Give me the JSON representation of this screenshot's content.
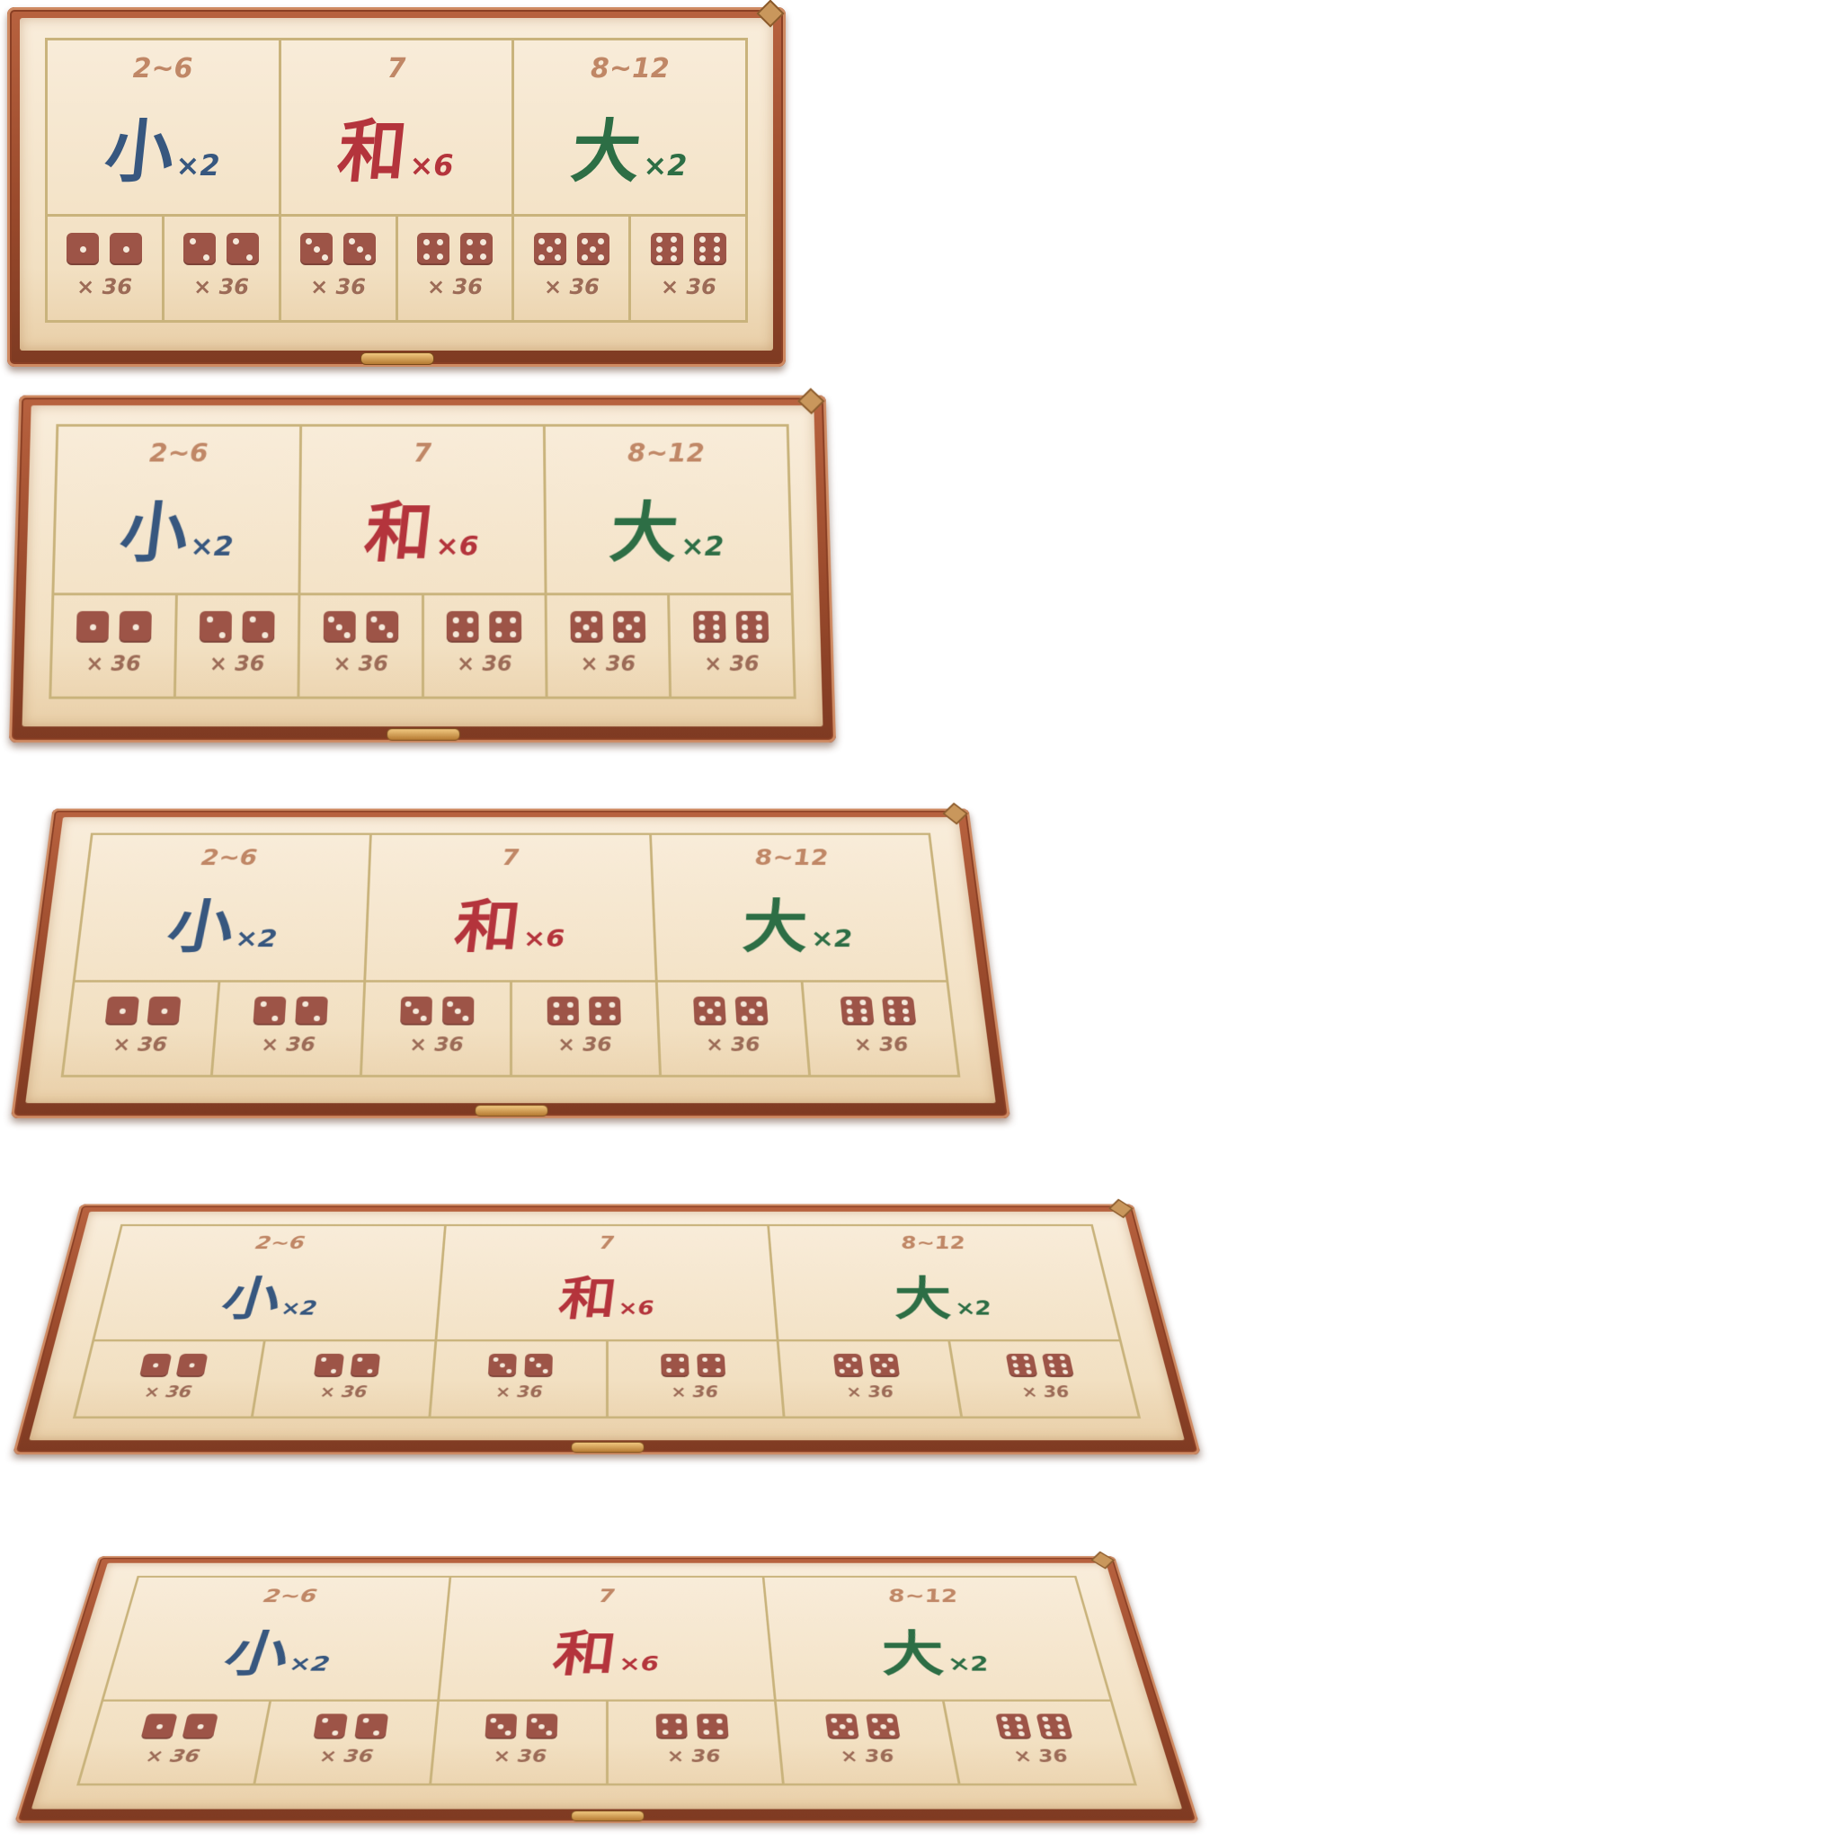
{
  "boards": [
    {
      "bets": [
        {
          "key": "small",
          "range": "2~6",
          "char": "小",
          "multiplier": "×2"
        },
        {
          "key": "tie",
          "range": "7",
          "char": "和",
          "multiplier": "×6"
        },
        {
          "key": "big",
          "range": "8~12",
          "char": "大",
          "multiplier": "×2"
        }
      ],
      "pairs": [
        {
          "dice": [
            1,
            1
          ],
          "multiplier": "× 36"
        },
        {
          "dice": [
            2,
            2
          ],
          "multiplier": "× 36"
        },
        {
          "dice": [
            3,
            3
          ],
          "multiplier": "× 36"
        },
        {
          "dice": [
            4,
            4
          ],
          "multiplier": "× 36"
        },
        {
          "dice": [
            5,
            5
          ],
          "multiplier": "× 36"
        },
        {
          "dice": [
            6,
            6
          ],
          "multiplier": "× 36"
        }
      ]
    },
    {
      "bets": [
        {
          "key": "small",
          "range": "2~6",
          "char": "小",
          "multiplier": "×2"
        },
        {
          "key": "tie",
          "range": "7",
          "char": "和",
          "multiplier": "×6"
        },
        {
          "key": "big",
          "range": "8~12",
          "char": "大",
          "multiplier": "×2"
        }
      ],
      "pairs": [
        {
          "dice": [
            1,
            1
          ],
          "multiplier": "× 36"
        },
        {
          "dice": [
            2,
            2
          ],
          "multiplier": "× 36"
        },
        {
          "dice": [
            3,
            3
          ],
          "multiplier": "× 36"
        },
        {
          "dice": [
            4,
            4
          ],
          "multiplier": "× 36"
        },
        {
          "dice": [
            5,
            5
          ],
          "multiplier": "× 36"
        },
        {
          "dice": [
            6,
            6
          ],
          "multiplier": "× 36"
        }
      ]
    },
    {
      "bets": [
        {
          "key": "small",
          "range": "2~6",
          "char": "小",
          "multiplier": "×2"
        },
        {
          "key": "tie",
          "range": "7",
          "char": "和",
          "multiplier": "×6"
        },
        {
          "key": "big",
          "range": "8~12",
          "char": "大",
          "multiplier": "×2"
        }
      ],
      "pairs": [
        {
          "dice": [
            1,
            1
          ],
          "multiplier": "× 36"
        },
        {
          "dice": [
            2,
            2
          ],
          "multiplier": "× 36"
        },
        {
          "dice": [
            3,
            3
          ],
          "multiplier": "× 36"
        },
        {
          "dice": [
            4,
            4
          ],
          "multiplier": "× 36"
        },
        {
          "dice": [
            5,
            5
          ],
          "multiplier": "× 36"
        },
        {
          "dice": [
            6,
            6
          ],
          "multiplier": "× 36"
        }
      ]
    },
    {
      "bets": [
        {
          "key": "small",
          "range": "2~6",
          "char": "小",
          "multiplier": "×2"
        },
        {
          "key": "tie",
          "range": "7",
          "char": "和",
          "multiplier": "×6"
        },
        {
          "key": "big",
          "range": "8~12",
          "char": "大",
          "multiplier": "×2"
        }
      ],
      "pairs": [
        {
          "dice": [
            1,
            1
          ],
          "multiplier": "× 36"
        },
        {
          "dice": [
            2,
            2
          ],
          "multiplier": "× 36"
        },
        {
          "dice": [
            3,
            3
          ],
          "multiplier": "× 36"
        },
        {
          "dice": [
            4,
            4
          ],
          "multiplier": "× 36"
        },
        {
          "dice": [
            5,
            5
          ],
          "multiplier": "× 36"
        },
        {
          "dice": [
            6,
            6
          ],
          "multiplier": "× 36"
        }
      ]
    },
    {
      "bets": [
        {
          "key": "small",
          "range": "2~6",
          "char": "小",
          "multiplier": "×2"
        },
        {
          "key": "tie",
          "range": "7",
          "char": "和",
          "multiplier": "×6"
        },
        {
          "key": "big",
          "range": "8~12",
          "char": "大",
          "multiplier": "×2"
        }
      ],
      "pairs": [
        {
          "dice": [
            1,
            1
          ],
          "multiplier": "× 36"
        },
        {
          "dice": [
            2,
            2
          ],
          "multiplier": "× 36"
        },
        {
          "dice": [
            3,
            3
          ],
          "multiplier": "× 36"
        },
        {
          "dice": [
            4,
            4
          ],
          "multiplier": "× 36"
        },
        {
          "dice": [
            5,
            5
          ],
          "multiplier": "× 36"
        },
        {
          "dice": [
            6,
            6
          ],
          "multiplier": "× 36"
        }
      ]
    }
  ]
}
